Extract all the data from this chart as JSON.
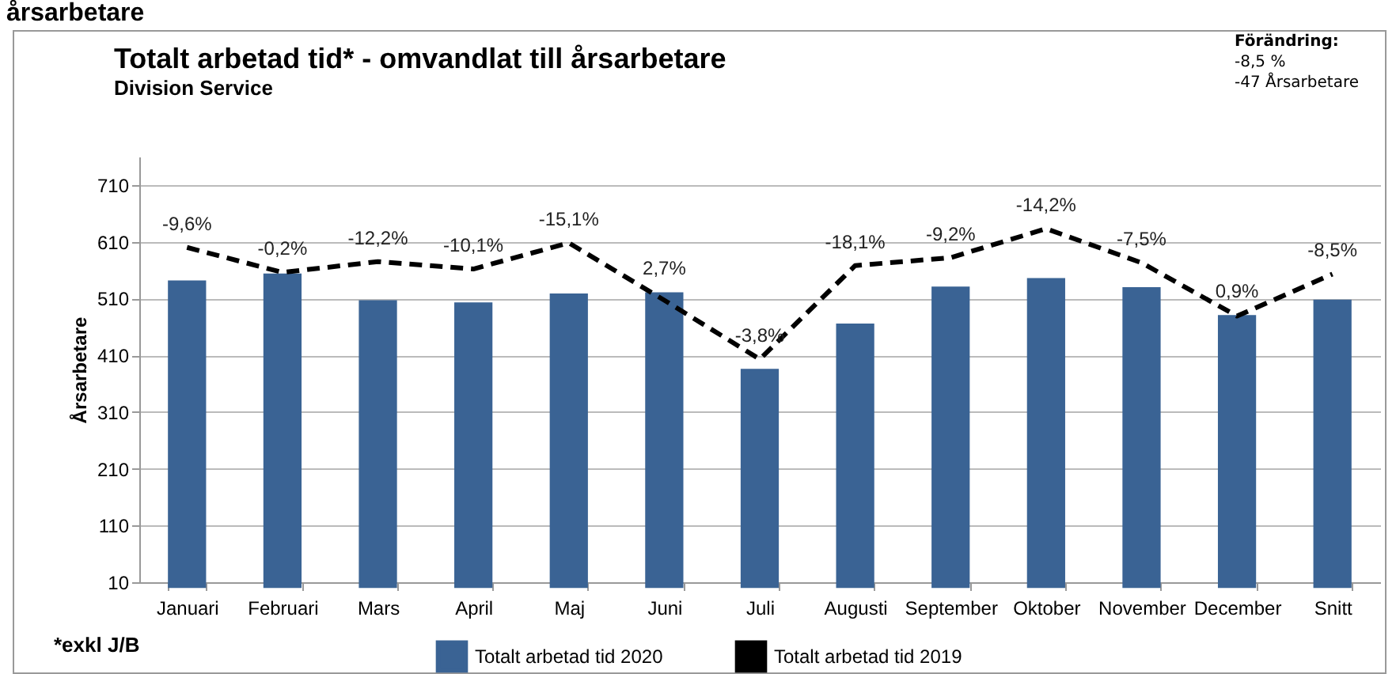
{
  "chart_data": {
    "type": "bar",
    "title": "Totalt arbetad tid* - omvandlat till årsarbetare",
    "subtitle": "Division Service",
    "ylabel": "Årsarbetare",
    "categories": [
      "Januari",
      "Februari",
      "Mars",
      "April",
      "Maj",
      "Juni",
      "Juli",
      "Augusti",
      "September",
      "Oktober",
      "November",
      "December",
      "Snitt"
    ],
    "series": [
      {
        "name": "Totalt arbetad tid 2020",
        "color": "#3a6394",
        "values": [
          542,
          554,
          507,
          503,
          519,
          521,
          386,
          466,
          531,
          546,
          530,
          481,
          508
        ]
      },
      {
        "name": "Totalt arbetad tid 2019",
        "type": "line",
        "color": "#000000",
        "line_style": "dashed",
        "values": [
          600,
          556,
          575,
          562,
          608,
          507,
          403,
          568,
          582,
          633,
          573,
          479,
          553
        ]
      }
    ],
    "ylim": [
      10,
      760
    ],
    "yticks": [
      10,
      110,
      210,
      310,
      410,
      510,
      610,
      710
    ],
    "grid": "y",
    "legend": "bottom",
    "annotations": [
      "årsarbetare",
      "Förändring:",
      "-8,5 %",
      "-47 Årsarbetare",
      "*exkl J/B",
      "-9,6%",
      "-0,2%",
      "-12,2%",
      "-10,1%",
      "-15,1%",
      "2,7%",
      "-3,8%",
      "-18,1%",
      "-9,2%",
      "-14,2%",
      "-7,5%",
      "0,9%",
      "-8,5%"
    ]
  }
}
